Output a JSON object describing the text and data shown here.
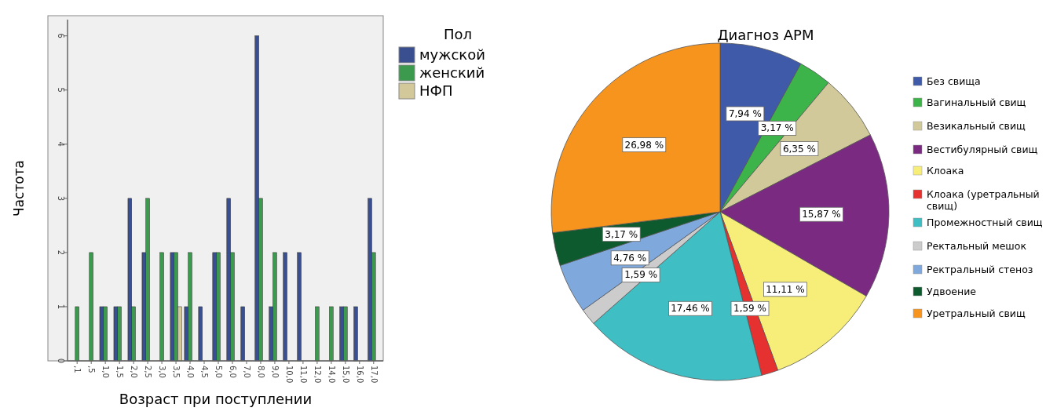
{
  "chart_data": [
    {
      "type": "bar",
      "xlabel": "Возраст при поступлении",
      "ylabel": "Частота",
      "legend_title": "Пол",
      "legend": "right",
      "ylim": [
        0,
        6.3
      ],
      "yticks": [
        0,
        1,
        2,
        3,
        4,
        5,
        6
      ],
      "categories": [
        ",1",
        ",5",
        "1,0",
        "1,5",
        "2,0",
        "2,5",
        "3,0",
        "3,5",
        "4,0",
        "4,5",
        "5,0",
        "6,0",
        "7,0",
        "8,0",
        "9,0",
        "10,0",
        "11,0",
        "12,0",
        "14,0",
        "15,0",
        "16,0",
        "17,0"
      ],
      "series": [
        {
          "name": "мужской",
          "color": "#3a4f8f",
          "values": [
            0,
            0,
            1,
            1,
            3,
            2,
            0,
            2,
            1,
            1,
            2,
            3,
            1,
            6,
            1,
            2,
            2,
            0,
            0,
            1,
            1,
            3
          ]
        },
        {
          "name": "женский",
          "color": "#3c9a4e",
          "values": [
            1,
            2,
            1,
            1,
            1,
            3,
            2,
            2,
            2,
            0,
            2,
            2,
            0,
            3,
            2,
            0,
            0,
            1,
            1,
            1,
            0,
            2
          ]
        },
        {
          "name": "НФП",
          "color": "#d3c89a",
          "values": [
            0,
            0,
            0,
            0,
            0,
            0,
            0,
            1,
            0,
            0,
            0,
            0,
            0,
            0,
            0,
            0,
            0,
            0,
            0,
            0,
            0,
            0
          ]
        }
      ]
    },
    {
      "type": "pie",
      "title": "Диагноз АРМ",
      "legend": "right",
      "categories": [
        "Без свища",
        "Вагинальный свищ",
        "Везикальный свищ",
        "Вестибулярный свищ",
        "Клоака",
        "Клоака (уретральный свищ)",
        "Промежностный свищ",
        "Ректальный мешок",
        "Ректральный стеноз",
        "Удвоение",
        "Уретральный свищ"
      ],
      "values": [
        7.94,
        3.17,
        6.35,
        15.87,
        11.11,
        1.59,
        17.46,
        1.59,
        4.76,
        3.17,
        26.98
      ],
      "value_labels": [
        "7,94 %",
        "3,17 %",
        "6,35 %",
        "15,87 %",
        "11,11 %",
        "1,59 %",
        "17,46 %",
        "1,59 %",
        "4,76 %",
        "3,17 %",
        "26,98 %"
      ],
      "colors": [
        "#3e5aa8",
        "#3cb44a",
        "#d2c99a",
        "#7b2a82",
        "#f7ee7a",
        "#e5312f",
        "#3fbfc4",
        "#cccccc",
        "#7fa9dc",
        "#0c5a2e",
        "#f7941d"
      ]
    }
  ]
}
